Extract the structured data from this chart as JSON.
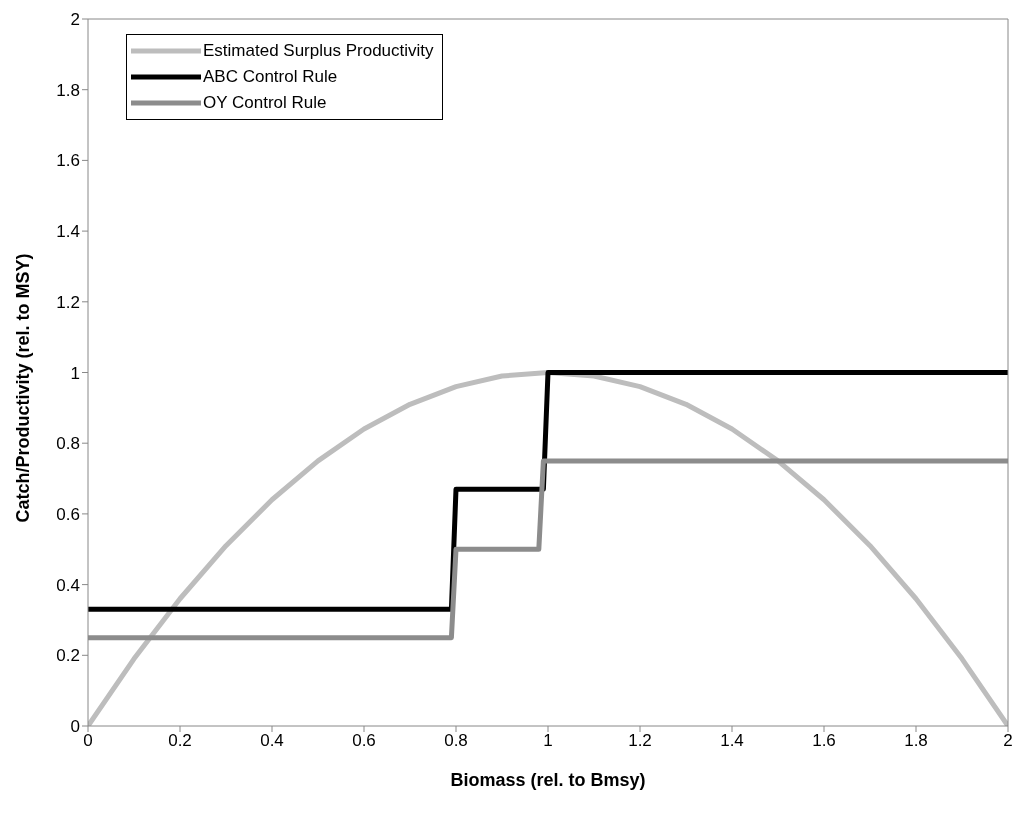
{
  "chart_data": {
    "type": "line",
    "xlabel": "Biomass (rel. to Bmsy)",
    "ylabel": "Catch/Productivity (rel. to MSY)",
    "xlim": [
      0,
      2
    ],
    "xticks": [
      0,
      0.2,
      0.4,
      0.6,
      0.8,
      1,
      1.2,
      1.4,
      1.6,
      1.8,
      2
    ],
    "ylim": [
      0,
      2
    ],
    "yticks": [
      0,
      0.2,
      0.4,
      0.6,
      0.8,
      1,
      1.2,
      1.4,
      1.6,
      1.8,
      2
    ],
    "grid": false,
    "legend": "top left",
    "marker": "none",
    "series": [
      {
        "name": "Estimated Surplus Productivity",
        "color": "#bdbdbd",
        "x": [
          0,
          0.1,
          0.2,
          0.3,
          0.4,
          0.5,
          0.6,
          0.7,
          0.8,
          0.9,
          1,
          1.1,
          1.2,
          1.3,
          1.4,
          1.5,
          1.6,
          1.7,
          1.8,
          1.9,
          2
        ],
        "values": [
          0,
          0.19,
          0.36,
          0.51,
          0.64,
          0.75,
          0.84,
          0.91,
          0.96,
          0.99,
          1,
          0.99,
          0.96,
          0.91,
          0.84,
          0.75,
          0.64,
          0.51,
          0.36,
          0.19,
          0
        ]
      },
      {
        "name": "ABC Control Rule",
        "color": "#000000",
        "x": [
          0,
          0.79,
          0.8,
          0.99,
          1,
          2
        ],
        "values": [
          0.33,
          0.33,
          0.67,
          0.67,
          1,
          1
        ]
      },
      {
        "name": "OY Control Rule",
        "color": "#8c8c8c",
        "x": [
          0,
          0.79,
          0.8,
          0.98,
          0.99,
          2
        ],
        "values": [
          0.25,
          0.25,
          0.5,
          0.5,
          0.75,
          0.75
        ]
      }
    ]
  }
}
